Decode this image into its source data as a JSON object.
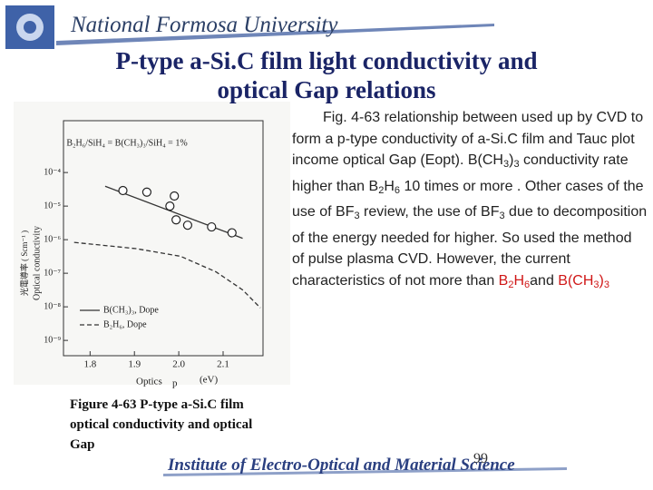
{
  "header": {
    "university": "National Formosa University"
  },
  "title": [
    "P-type a-Si.C film light conductivity and",
    "optical Gap relations"
  ],
  "body": {
    "segments": [
      {
        "text": "Fig. 4-63 relationship between  used up by CVD to form a p-type conductivity of a-Si.C film and Tauc plot income optical Gap (Eopt). B(CH",
        "style": "normal"
      },
      {
        "text": "3",
        "style": "sub"
      },
      {
        "text": ")",
        "style": "normal"
      },
      {
        "text": "3",
        "style": "sub"
      },
      {
        "text": " conductivity rate higher than B",
        "style": "normal"
      },
      {
        "text": "2",
        "style": "sub"
      },
      {
        "text": "H",
        "style": "normal"
      },
      {
        "text": "6",
        "style": "sub"
      },
      {
        "text": " 10 times or more . Other cases of the use of BF",
        "style": "normal"
      },
      {
        "text": "3",
        "style": "sub"
      },
      {
        "text": " review, the use of BF",
        "style": "normal"
      },
      {
        "text": "3",
        "style": "sub"
      },
      {
        "text": " due to decomposition of the energy needed for higher. So used the method of pulse plasma CVD. However, the current characteristics of not more than ",
        "style": "normal"
      },
      {
        "text": "B",
        "style": "red"
      },
      {
        "text": "2",
        "style": "red-sub"
      },
      {
        "text": "H",
        "style": "red"
      },
      {
        "text": "6",
        "style": "red-sub"
      },
      {
        "text": "and",
        "style": "normal"
      },
      {
        "text": " B(CH",
        "style": "red"
      },
      {
        "text": "3",
        "style": "red-sub"
      },
      {
        "text": ")",
        "style": "red"
      },
      {
        "text": "3",
        "style": "red-sub"
      }
    ]
  },
  "caption": [
    "Figure 4-63 P-type a-Si.C film",
    "optical conductivity and optical",
    "Gap"
  ],
  "footer": {
    "institute": "Institute of Electro-Optical and Material Science",
    "page": "99"
  },
  "chart_data": {
    "type": "line",
    "log_y": true,
    "formula": "B₂H₆/SiH₄ = B(CH₃)₃/SiH₄ = 1%",
    "y_label": "光電導率 ( Scm⁻¹ )",
    "y_label_en": "Optical conductivity",
    "x_label": "(eV)",
    "x_label_en": "Optics",
    "x_symbol": "p",
    "xlim": [
      1.74,
      2.19
    ],
    "xticks": [
      1.8,
      1.9,
      {
        "value": 2.0,
        "label": "2.0"
      },
      2.1
    ],
    "ylim": [
      3.5e-10,
      0.0035
    ],
    "yticks": [
      {
        "value": 0.0001,
        "label": "10⁻⁴"
      },
      {
        "value": 1e-05,
        "label": "10⁻⁵"
      },
      {
        "value": 1e-06,
        "label": "10⁻⁶"
      },
      {
        "value": 1e-07,
        "label": "10⁻⁷"
      },
      {
        "value": 1e-08,
        "label": "10⁻⁸"
      },
      {
        "value": 1e-09,
        "label": "10⁻⁹"
      }
    ],
    "legend": "lower left",
    "points": {
      "x": [
        1.874,
        1.928,
        1.99,
        1.98,
        1.994,
        2.02,
        2.074,
        2.12
      ],
      "values": [
        2.9e-05,
        2.6e-05,
        2e-05,
        1e-05,
        3.9e-06,
        2.7e-06,
        2.4e-06,
        1.6e-06
      ]
    },
    "series": [
      {
        "name": "B(CH₃)₃, Dope",
        "color": "#333333",
        "dash": false,
        "x": [
          1.834,
          2.144
        ],
        "values": [
          3.9e-05,
          1.1e-06
        ]
      },
      {
        "name": "B₂H₆, Dope",
        "color": "#333333",
        "dash": true,
        "x": [
          1.764,
          1.904,
          2.004,
          2.084,
          2.144,
          2.184
        ],
        "values": [
          8.3e-07,
          5.4e-07,
          3.2e-07,
          1.1e-07,
          3.2e-08,
          9.3e-09
        ]
      }
    ]
  }
}
